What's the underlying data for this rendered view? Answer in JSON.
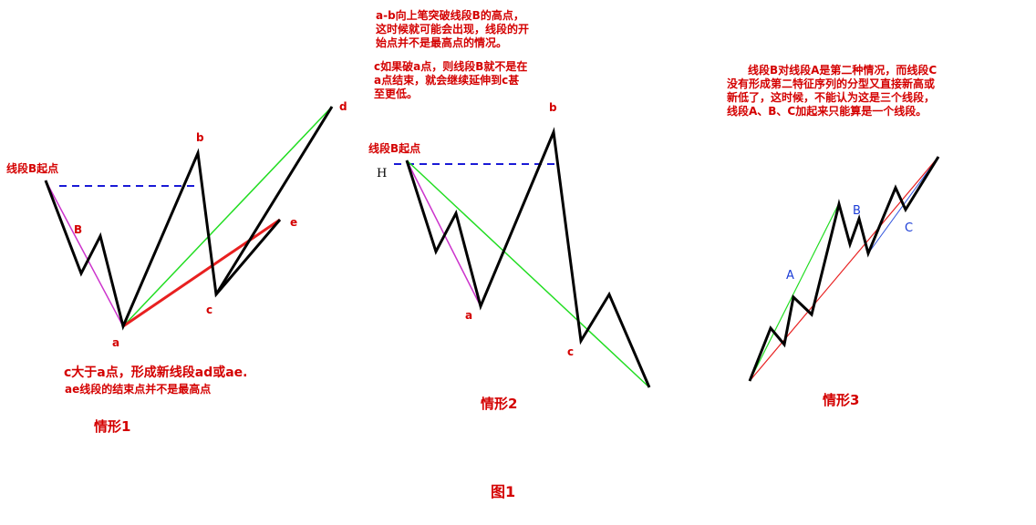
{
  "scenario1": {
    "start_label": "线段B起点",
    "segment_label": "B",
    "points": {
      "a": "a",
      "b": "b",
      "c": "c",
      "d": "d",
      "e": "e"
    },
    "note_line1": "c大于a点，形成新线段ad或ae.",
    "note_line2": "ae线段的结束点并不是最高点",
    "caption": "情形1"
  },
  "scenario2": {
    "note_top_lines": [
      "a-b向上笔突破线段B的高点，",
      "这时候就可能会出现，线段的开",
      "始点并不是最高点的情况。"
    ],
    "note_mid_lines": [
      "c如果破a点，则线段B就不是在",
      "a点结束，就会继续延伸到c甚",
      "至更低。"
    ],
    "start_label": "线段B起点",
    "high_label": "H",
    "points": {
      "a": "a",
      "b": "b",
      "c": "c"
    },
    "caption": "情形2"
  },
  "scenario3": {
    "note_lines": [
      "线段B对线段A是第二种情况，而线段C",
      "没有形成第二特征序列的分型又直接新高或",
      "新低了，这时候，不能认为这是三个线段，",
      "线段A、B、C加起来只能算是一个线段。"
    ],
    "segment_labels": {
      "A": "A",
      "B": "B",
      "C": "C"
    },
    "caption": "情形3"
  },
  "figure_caption": "图1",
  "colors": {
    "text_red": "#d40000",
    "stroke_black": "#000000",
    "dashed_blue": "#1a1ad6",
    "magenta": "#cc33cc",
    "green": "#22dd22",
    "red_line": "#e82020",
    "blue_thin": "#3355dd"
  }
}
